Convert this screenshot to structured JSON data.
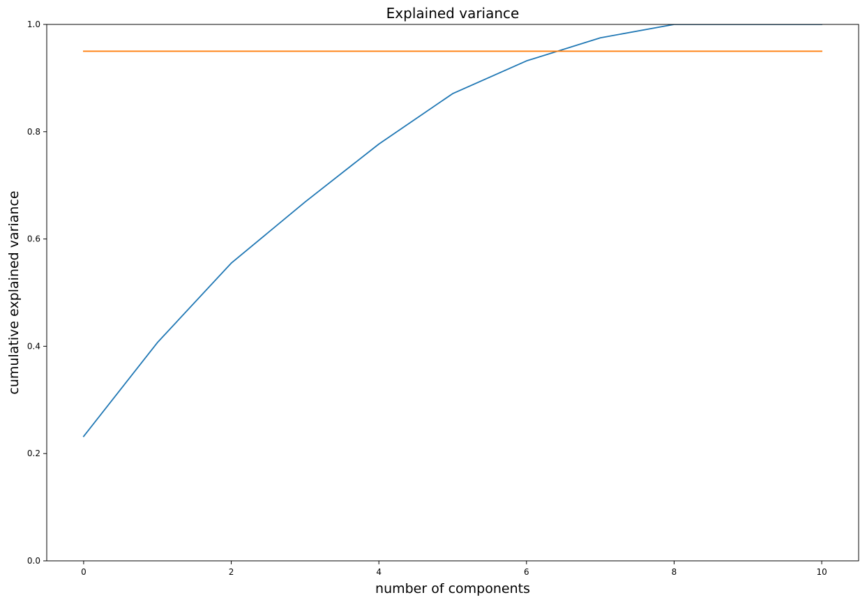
{
  "chart_data": {
    "type": "line",
    "title": "Explained variance",
    "xlabel": "number of components",
    "ylabel": "cumulative explained variance",
    "xlim": [
      -0.5,
      10.5
    ],
    "ylim": [
      0.0,
      1.0
    ],
    "xticks": [
      0,
      2,
      4,
      6,
      8,
      10
    ],
    "yticks": [
      0.0,
      0.2,
      0.4,
      0.6,
      0.8,
      1.0
    ],
    "xtick_labels": [
      "0",
      "2",
      "4",
      "6",
      "8",
      "10"
    ],
    "ytick_labels": [
      "0.0",
      "0.2",
      "0.4",
      "0.6",
      "0.8",
      "1.0"
    ],
    "grid": false,
    "series": [
      {
        "color": "#1f77b4",
        "x": [
          0,
          1,
          2,
          3,
          4,
          5,
          6,
          7,
          8,
          9,
          10
        ],
        "y": [
          0.232,
          0.407,
          0.555,
          0.669,
          0.777,
          0.871,
          0.932,
          0.975,
          1.0,
          1.0,
          1.0
        ]
      },
      {
        "color": "#ff7f0e",
        "x": [
          0,
          10
        ],
        "y": [
          0.95,
          0.95
        ]
      }
    ]
  }
}
